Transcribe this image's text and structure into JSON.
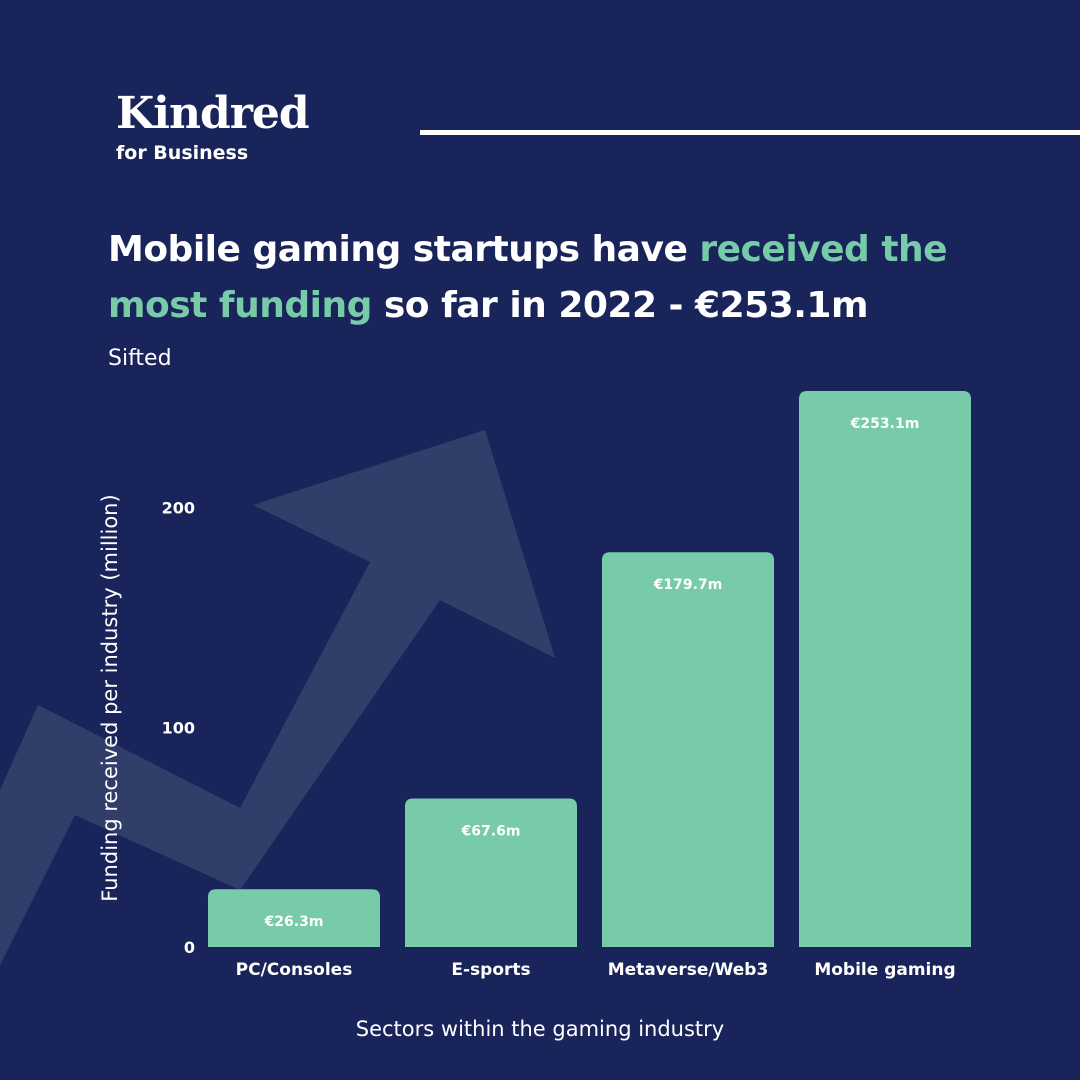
{
  "brand": {
    "name": "Kindred",
    "tagline": "for Business"
  },
  "headline": {
    "part1": "Mobile gaming startups have ",
    "highlight1": "received the",
    "highlight2": "most funding",
    "part2": " so far in 2022 - €253.1m"
  },
  "source": "Sifted",
  "colors": {
    "background": "#19245a",
    "accent": "#77cba9",
    "arrow": "#323e6a",
    "text": "#ffffff"
  },
  "chart_data": {
    "type": "bar",
    "categories": [
      "PC/Consoles",
      "E-sports",
      "Metaverse/Web3",
      "Mobile gaming"
    ],
    "values": [
      26.3,
      67.6,
      179.7,
      253.1
    ],
    "data_labels": [
      "€26.3m",
      "€67.6m",
      "€179.7m",
      "€253.1m"
    ],
    "xlabel": "Sectors within the gaming industry",
    "ylabel": "Funding received per industry (million)",
    "yticks": [
      0,
      100,
      200
    ],
    "ylim": [
      0,
      253.1
    ],
    "grid": false,
    "legend": "none",
    "bar_color": "#77cba9"
  }
}
